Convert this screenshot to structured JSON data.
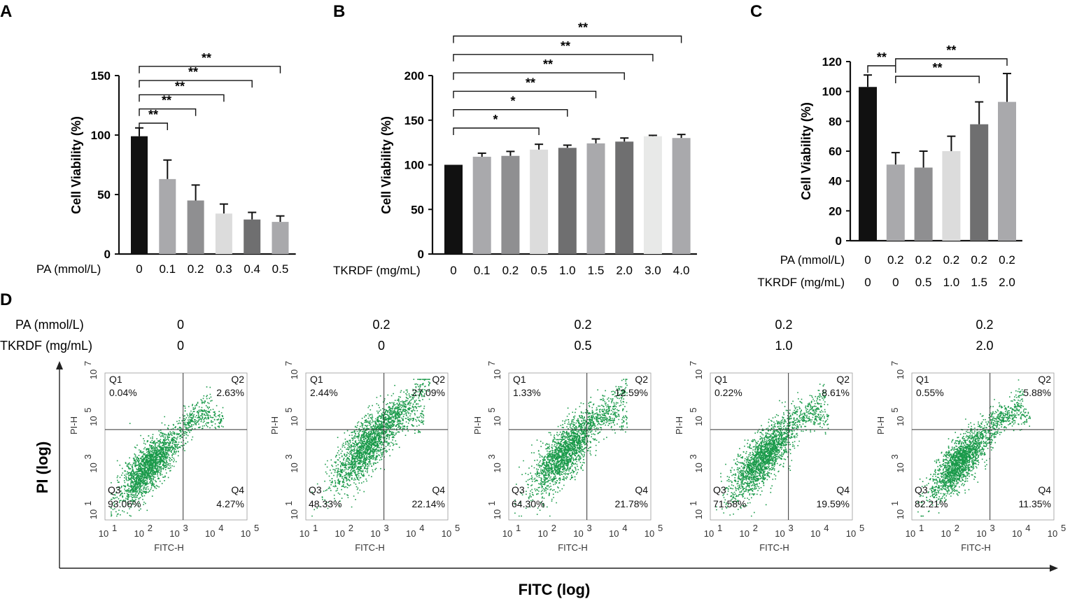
{
  "chart_data": [
    {
      "panel": "A",
      "type": "bar",
      "ylabel": "Cell Viability (%)",
      "xlabel": "PA (mmol/L)",
      "ylim": [
        0,
        150
      ],
      "yticks": [
        "0",
        "50",
        "100",
        "150"
      ],
      "categories": [
        "0",
        "0.1",
        "0.2",
        "0.3",
        "0.4",
        "0.5"
      ],
      "values": [
        99,
        63,
        45,
        34,
        29,
        27
      ],
      "errors": [
        7,
        16,
        13,
        8,
        6,
        5
      ],
      "colors": [
        "#111111",
        "#a9a9ac",
        "#8f8f91",
        "#dcdcdc",
        "#6f6f70",
        "#a9a9ac"
      ],
      "comparisons": [
        {
          "from": 0,
          "to": 1,
          "label": "**"
        },
        {
          "from": 0,
          "to": 2,
          "label": "**"
        },
        {
          "from": 0,
          "to": 3,
          "label": "**"
        },
        {
          "from": 0,
          "to": 4,
          "label": "**"
        },
        {
          "from": 0,
          "to": 5,
          "label": "**"
        }
      ]
    },
    {
      "panel": "B",
      "type": "bar",
      "ylabel": "Cell Viability (%)",
      "xlabel": "TKRDF (mg/mL)",
      "ylim": [
        0,
        200
      ],
      "yticks": [
        "0",
        "50",
        "100",
        "150",
        "200"
      ],
      "categories": [
        "0",
        "0.1",
        "0.2",
        "0.5",
        "1.0",
        "1.5",
        "2.0",
        "3.0",
        "4.0"
      ],
      "values": [
        100,
        109,
        110,
        117,
        119,
        124,
        126,
        132,
        130
      ],
      "errors": [
        0,
        4,
        5,
        6,
        3,
        5,
        4,
        1,
        4
      ],
      "colors": [
        "#111111",
        "#a9a9ac",
        "#8f8f91",
        "#dcdcdc",
        "#6f6f70",
        "#a9a9ac",
        "#6f6f70",
        "#e8e9e8",
        "#a9a9ac"
      ],
      "comparisons": [
        {
          "from": 0,
          "to": 3,
          "label": "*"
        },
        {
          "from": 0,
          "to": 4,
          "label": "*"
        },
        {
          "from": 0,
          "to": 5,
          "label": "**"
        },
        {
          "from": 0,
          "to": 6,
          "label": "**"
        },
        {
          "from": 0,
          "to": 7,
          "label": "**"
        },
        {
          "from": 0,
          "to": 8,
          "label": "**"
        }
      ]
    },
    {
      "panel": "C",
      "type": "bar",
      "ylabel": "Cell Viability (%)",
      "ylim": [
        0,
        120
      ],
      "yticks": [
        "0",
        "20",
        "40",
        "60",
        "80",
        "100",
        "120"
      ],
      "row_labels": [
        "PA (mmol/L)",
        "TKRDF (mg/mL)"
      ],
      "pa": [
        "0",
        "0.2",
        "0.2",
        "0.2",
        "0.2",
        "0.2"
      ],
      "tkrdf": [
        "0",
        "0",
        "0.5",
        "1.0",
        "1.5",
        "2.0"
      ],
      "values": [
        103,
        51,
        49,
        60,
        78,
        93
      ],
      "errors": [
        8,
        8,
        11,
        10,
        15,
        19
      ],
      "colors": [
        "#111111",
        "#a9a9ac",
        "#8f8f91",
        "#dcdcdc",
        "#6f6f70",
        "#a9a9ac"
      ],
      "comparisons": [
        {
          "from": 0,
          "to": 1,
          "label": "**"
        },
        {
          "from": 1,
          "to": 4,
          "label": "**"
        },
        {
          "from": 1,
          "to": 5,
          "label": "**"
        }
      ]
    }
  ],
  "panels": {
    "a": "A",
    "b": "B",
    "c": "C",
    "d": "D"
  },
  "flow": {
    "pa_label": "PA (mmol/L)",
    "tkrdf_label": "TKRDF (mg/mL)",
    "y_axis_title": "PI (log)",
    "x_axis_title": "FITC (log)",
    "plot_xlabel": "FITC-H",
    "plot_ylabel": "PI-H",
    "dot_color": "#1a9a4a",
    "plots": [
      {
        "pa": "0",
        "tkrdf": "0",
        "q1": "0.04%",
        "q2": "2.63%",
        "q3": "93.06%",
        "q4": "4.27%"
      },
      {
        "pa": "0.2",
        "tkrdf": "0",
        "q1": "2.44%",
        "q2": "27.09%",
        "q3": "48.33%",
        "q4": "22.14%"
      },
      {
        "pa": "0.2",
        "tkrdf": "0.5",
        "q1": "1.33%",
        "q2": "12.59%",
        "q3": "64.30%",
        "q4": "21.78%"
      },
      {
        "pa": "0.2",
        "tkrdf": "1.0",
        "q1": "0.22%",
        "q2": "8.61%",
        "q3": "71.58%",
        "q4": "19.59%"
      },
      {
        "pa": "0.2",
        "tkrdf": "2.0",
        "q1": "0.55%",
        "q2": "5.88%",
        "q3": "82.21%",
        "q4": "11.35%"
      }
    ]
  }
}
